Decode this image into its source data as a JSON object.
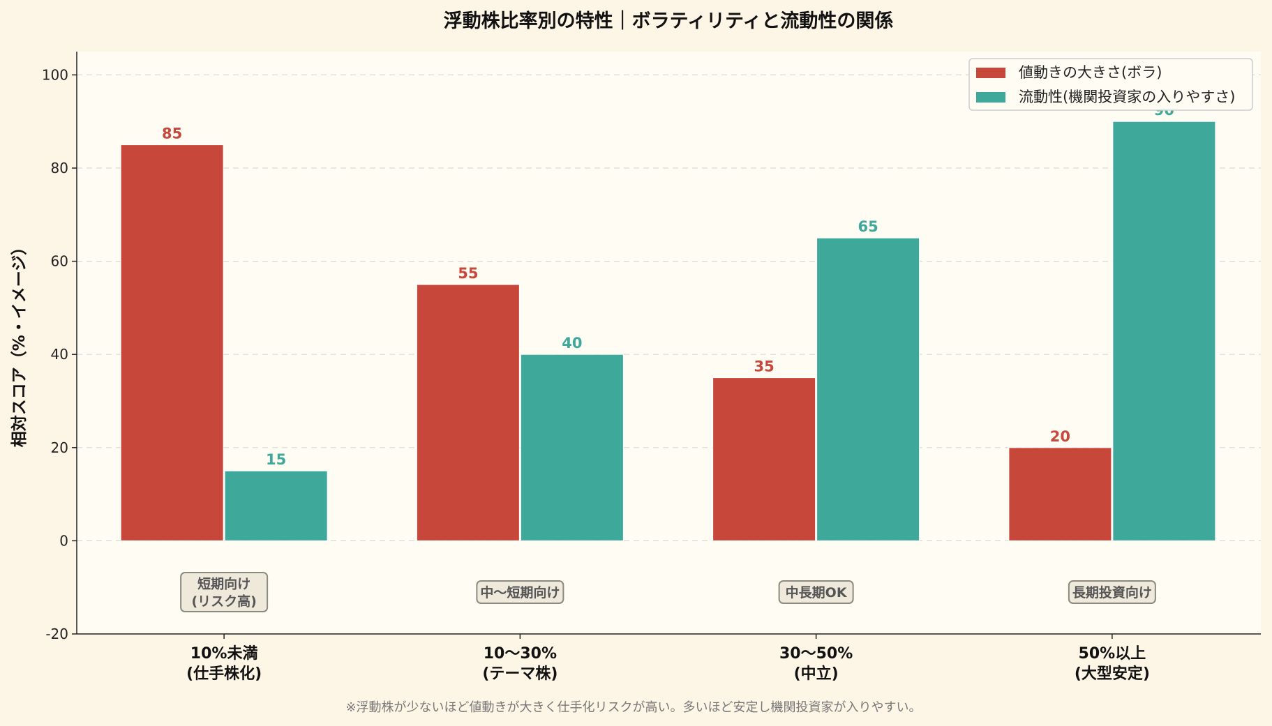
{
  "chart_data": {
    "type": "bar",
    "title": "浮動株比率別の特性｜ボラティリティと流動性の関係",
    "ylabel": "相対スコア（%・イメージ）",
    "xlabel": "",
    "ylim": [
      -20,
      105
    ],
    "yticks": [
      -20,
      0,
      20,
      40,
      60,
      80,
      100
    ],
    "grid": true,
    "legend_position": "top-right",
    "categories": [
      [
        "10%未満",
        "(仕手株化)"
      ],
      [
        "10〜30%",
        "(テーマ株)"
      ],
      [
        "30〜50%",
        "(中立)"
      ],
      [
        "50%以上",
        "(大型安定)"
      ]
    ],
    "series": [
      {
        "name": "値動きの大きさ(ボラ)",
        "color": "#c8473b",
        "values": [
          85,
          55,
          35,
          20
        ]
      },
      {
        "name": "流動性(機関投資家の入りやすさ)",
        "color": "#3ea89a",
        "values": [
          15,
          40,
          65,
          90
        ]
      }
    ],
    "annotations": [
      [
        "短期向け",
        "(リスク高)"
      ],
      [
        "中〜短期向け"
      ],
      [
        "中長期OK"
      ],
      [
        "長期投資向け"
      ]
    ],
    "footnote": "※浮動株が少ないほど値動きが大きく仕手化リスクが高い。多いほど安定し機関投資家が入りやすい。"
  }
}
